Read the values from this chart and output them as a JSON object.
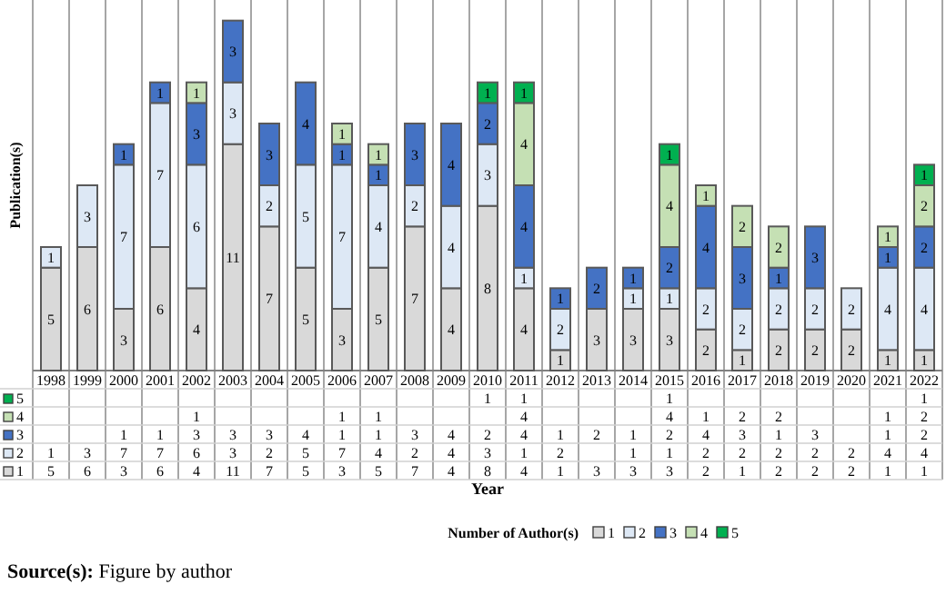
{
  "chart_data": {
    "type": "bar",
    "stacked": true,
    "ylabel": "Publication(s)",
    "legend_title": "Number of Author(s)",
    "legend": "bottom",
    "ylim": [
      0,
      18
    ],
    "categories": [
      "1998",
      "1999",
      "2000",
      "2001",
      "2002",
      "2003",
      "2004",
      "2005",
      "2006",
      "2007",
      "2008",
      "2009",
      "2010",
      "2011",
      "2012",
      "2013",
      "2014",
      "2015",
      "2016",
      "2017",
      "2018",
      "2019",
      "2020",
      "2021",
      "2022"
    ],
    "series": [
      {
        "name": "1",
        "color": "#d9d9d9",
        "values": [
          5,
          6,
          3,
          6,
          4,
          11,
          7,
          5,
          3,
          5,
          7,
          4,
          8,
          4,
          1,
          3,
          3,
          3,
          2,
          1,
          2,
          2,
          2,
          1,
          1
        ],
        "value_labels": [
          "5",
          "6",
          "3",
          "6",
          "4",
          "11",
          "7",
          "5",
          "3",
          "5",
          "7",
          "4",
          "8",
          "4",
          "1",
          "3",
          "3",
          "3",
          "2",
          "1",
          "2",
          "2",
          "2",
          "1",
          "1"
        ]
      },
      {
        "name": "2",
        "color": "#dde8f5",
        "values": [
          1,
          3,
          7,
          7,
          6,
          3,
          2,
          5,
          7,
          4,
          2,
          4,
          3,
          1,
          2,
          null,
          1,
          1,
          2,
          2,
          2,
          2,
          2,
          4,
          4
        ],
        "value_labels": [
          "1",
          "3",
          "7",
          "7",
          "6",
          "3",
          "2",
          "5",
          "7",
          "4",
          "2",
          "4",
          "3",
          "1",
          "2",
          null,
          "1",
          "1",
          "2",
          "2",
          "2",
          "2",
          "2",
          "4",
          "4"
        ]
      },
      {
        "name": "3",
        "color": "#4472c4",
        "values": [
          null,
          null,
          1,
          1,
          3,
          3,
          3,
          4,
          1,
          1,
          3,
          4,
          2,
          4,
          1,
          2,
          1,
          2,
          4,
          3,
          1,
          3,
          null,
          1,
          2
        ],
        "value_labels": [
          null,
          null,
          "1",
          "1",
          "3",
          "3",
          "3",
          "4",
          "1",
          "1",
          "3",
          "4",
          "2",
          "4",
          "1",
          "2",
          "1",
          "2",
          "4",
          "3",
          "1",
          "3",
          null,
          "1",
          "2"
        ]
      },
      {
        "name": "4",
        "color": "#c5e0b4",
        "values": [
          null,
          null,
          null,
          null,
          1,
          null,
          null,
          null,
          1,
          1,
          null,
          null,
          null,
          4,
          null,
          null,
          null,
          4,
          1,
          2,
          2,
          null,
          null,
          1,
          2
        ],
        "value_labels": [
          null,
          null,
          null,
          null,
          "1",
          null,
          null,
          null,
          "1",
          "1",
          null,
          null,
          null,
          "4",
          null,
          null,
          null,
          "4",
          "1",
          "2",
          "2",
          null,
          null,
          "1",
          "2"
        ]
      },
      {
        "name": "5",
        "color": "#00b050",
        "values": [
          null,
          null,
          null,
          null,
          null,
          null,
          null,
          null,
          null,
          null,
          null,
          null,
          1,
          1,
          null,
          null,
          null,
          1,
          null,
          null,
          null,
          null,
          null,
          null,
          1
        ],
        "value_labels": [
          null,
          null,
          null,
          null,
          null,
          null,
          null,
          null,
          null,
          null,
          null,
          null,
          "1",
          "1",
          null,
          null,
          null,
          "1",
          null,
          null,
          null,
          null,
          null,
          null,
          "1"
        ]
      }
    ],
    "annotations": [
      "Year",
      "Source(s): Figure by author"
    ]
  }
}
